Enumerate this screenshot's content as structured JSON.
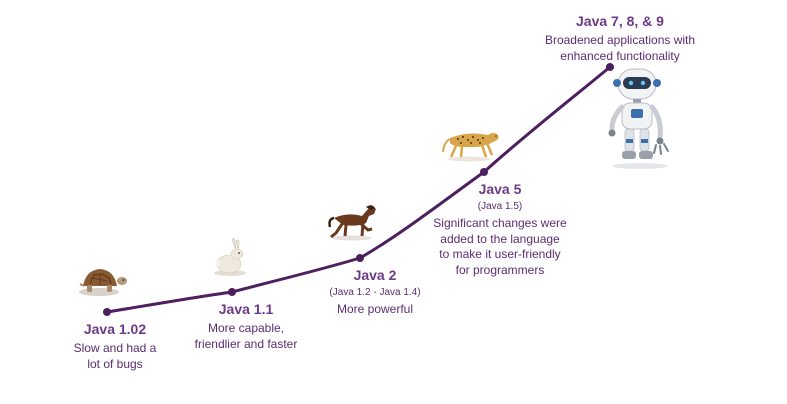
{
  "colors": {
    "line": "#4e1f5e",
    "text": "#5a2d70",
    "heading": "#6d3a87"
  },
  "milestones": [
    {
      "version": "Java 1.02",
      "subversion": "",
      "description": [
        "Slow and had a",
        "lot of bugs"
      ],
      "icon": "tortoise-icon"
    },
    {
      "version": "Java 1.1",
      "subversion": "",
      "description": [
        "More capable,",
        "friendlier and faster"
      ],
      "icon": "rabbit-icon"
    },
    {
      "version": "Java 2",
      "subversion": "(Java 1.2 - Java 1.4)",
      "description": [
        "More powerful"
      ],
      "icon": "horse-icon"
    },
    {
      "version": "Java 5",
      "subversion": "(Java 1.5)",
      "description": [
        "Significant changes were",
        "added to the language",
        "to make it user-friendly",
        "for programmers"
      ],
      "icon": "cheetah-icon"
    },
    {
      "version": "Java 7, 8, & 9",
      "subversion": "",
      "description": [
        "Broadened applications with",
        "enhanced functionality"
      ],
      "icon": "robot-icon"
    }
  ]
}
